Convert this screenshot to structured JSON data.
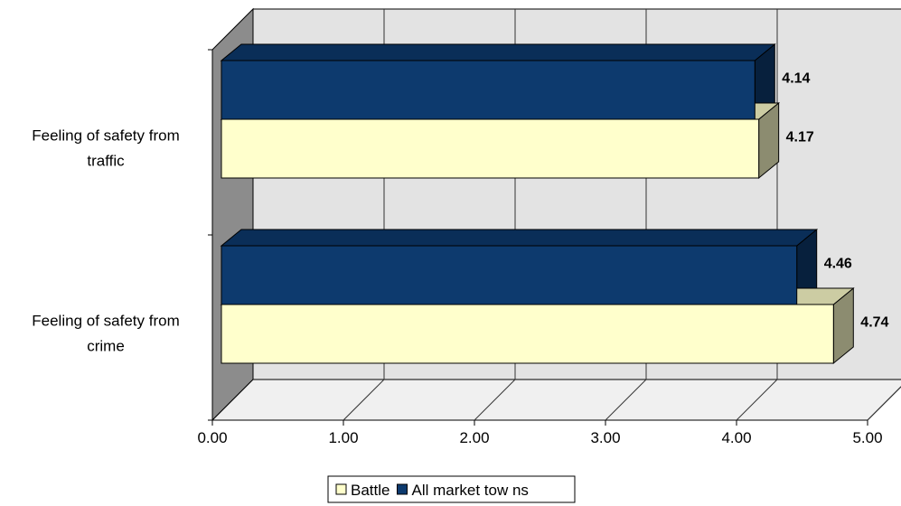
{
  "chart_data": {
    "type": "bar",
    "orientation": "horizontal",
    "style": "3d",
    "categories": [
      "Feeling of safety from traffic",
      "Feeling of safety from crime"
    ],
    "category_display_lines": [
      [
        "Feeling of safety from",
        "traffic"
      ],
      [
        "Feeling of safety from",
        "crime"
      ]
    ],
    "series": [
      {
        "name": "All market tow ns",
        "values": [
          4.14,
          4.46
        ],
        "color": "#0d3a6e",
        "value_labels": [
          "4.14",
          "4.46"
        ]
      },
      {
        "name": "Battle",
        "values": [
          4.17,
          4.74
        ],
        "color": "#ffffcc",
        "value_labels": [
          "4.17",
          "4.74"
        ]
      }
    ],
    "xlim": [
      0,
      5
    ],
    "xticks": [
      "0.00",
      "1.00",
      "2.00",
      "3.00",
      "4.00",
      "5.00"
    ],
    "title": "",
    "xlabel": "",
    "ylabel": "",
    "grid": true,
    "legend": {
      "position": "bottom",
      "entries": [
        {
          "label": "Battle",
          "color": "#ffffcc"
        },
        {
          "label": "All market tow ns",
          "color": "#0d3a6e"
        }
      ]
    },
    "colors": {
      "wall": "#e3e3e3",
      "side_wall": "#8c8c8c",
      "floor": "#f0f0f0",
      "gridline": "#333333"
    }
  }
}
